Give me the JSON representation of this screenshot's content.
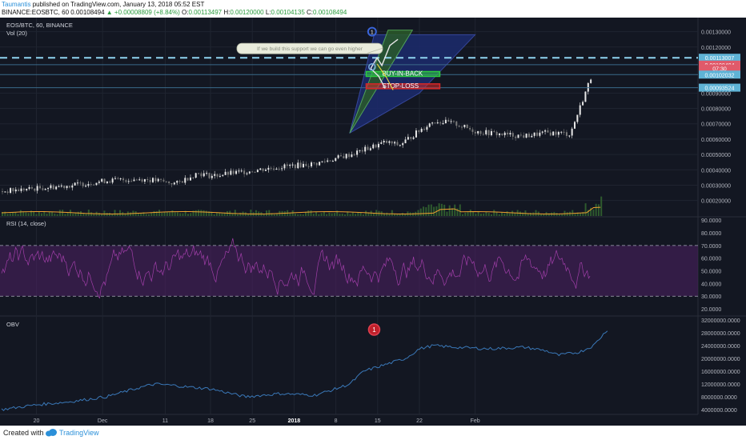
{
  "header": {
    "author": "Taumantis",
    "published": "published on TradingView.com, January 13, 2018 05:52 EST",
    "symbol": "BINANCE:EOSBTC, 60",
    "price": "0.00108494",
    "change": "▲ +0.00008809 (+8.84%)",
    "o_label": "O:",
    "o_value": "0.00113497",
    "h_label": "H:",
    "h_value": "0.00120000",
    "l_label": "L:",
    "l_value": "0.00104135",
    "c_label": "C:",
    "c_value": "0.00108494"
  },
  "footer": {
    "created_with": "Created with",
    "brand": "TradingView",
    "logo_icon": "tradingview-cloud-icon"
  },
  "colors": {
    "background": "#131722",
    "panel_border": "#2a2e39",
    "grid": "#1f2430",
    "axis_text": "#b2b5be",
    "candle_up": "#e8e8e8",
    "candle_down": "#7a7a7a",
    "volume": "#2e5a2e",
    "volume_ma": "#f0a030",
    "rsi_line": "#a03ea8",
    "rsi_band": "#4a1f5f",
    "obv_line": "#3a78b8",
    "support_line": "#8fd4f0",
    "buy_green": "#2ecc40",
    "stop_red": "#d62828",
    "price_badge": "#e05a6a",
    "level_badge": "#5fb3d6"
  },
  "chart_data": [
    {
      "type": "candlestick",
      "pane": "price",
      "title": "EOS/BTC, 60, BINANCE",
      "legend": [
        "Vol (20)"
      ],
      "ylim": [
        0.00012,
        0.00135
      ],
      "y_ticks": [
        "0.00130000",
        "0.00120000",
        "0.00090000",
        "0.00080000",
        "0.00070000",
        "0.00060000",
        "0.00050000",
        "0.00040000",
        "0.00030000",
        "0.00020000"
      ],
      "x_tick_labels": [
        "20",
        "Dec",
        "11",
        "18",
        "25",
        "2018",
        "8",
        "15",
        "22",
        "Feb"
      ],
      "trend": {
        "x": [
          0,
          0.05,
          0.1,
          0.15,
          0.2,
          0.22,
          0.25,
          0.28,
          0.3,
          0.35,
          0.4,
          0.45,
          0.5,
          0.55,
          0.57,
          0.6,
          0.62,
          0.65,
          0.68,
          0.7,
          0.72,
          0.75,
          0.78,
          0.8,
          0.82,
          0.84
        ],
        "close": [
          0.00026,
          0.00028,
          0.0003,
          0.00033,
          0.00034,
          0.00033,
          0.00031,
          0.00038,
          0.00036,
          0.00039,
          0.00042,
          0.00044,
          0.0005,
          0.00058,
          0.00056,
          0.00066,
          0.00072,
          0.0007,
          0.00065,
          0.00064,
          0.00063,
          0.00062,
          0.00064,
          0.00064,
          0.00063,
          0.00064
        ]
      },
      "badges": [
        {
          "label": "0.00113007",
          "value": 0.00113007,
          "kind": "level"
        },
        {
          "label": "0.00108494",
          "value": 0.00108494,
          "kind": "price"
        },
        {
          "label": "07:30",
          "value": 0.00106,
          "kind": "price"
        },
        {
          "label": "0.00102032",
          "value": 0.00102032,
          "kind": "level"
        },
        {
          "label": "0.00093524",
          "value": 0.00093524,
          "kind": "level"
        }
      ],
      "annotations": {
        "callout": "If we build this support we can go even higher",
        "buy_label": "BUY-IN-BACK",
        "stop_label": "STOP-LOSS",
        "marker": "1"
      }
    },
    {
      "type": "line",
      "pane": "rsi",
      "title": "RSI (14, close)",
      "ylim": [
        15,
        92
      ],
      "band": [
        30,
        70
      ],
      "y_ticks": [
        "90.0000",
        "80.0000",
        "70.0000",
        "60.0000",
        "50.0000",
        "40.0000",
        "30.0000",
        "20.0000"
      ]
    },
    {
      "type": "line",
      "pane": "obv",
      "title": "OBV",
      "ylim": [
        2500000,
        33000000
      ],
      "y_ticks": [
        "32000000.0000",
        "28000000.0000",
        "24000000.0000",
        "20000000.0000",
        "16000000.0000",
        "12000000.0000",
        "8000000.0000",
        "4000000.0000"
      ],
      "marker": "1",
      "series": {
        "x": [
          0,
          0.05,
          0.1,
          0.15,
          0.2,
          0.22,
          0.25,
          0.27,
          0.3,
          0.32,
          0.35,
          0.4,
          0.45,
          0.48,
          0.5,
          0.52,
          0.55,
          0.58,
          0.6,
          0.62,
          0.65,
          0.7,
          0.75,
          0.78,
          0.8,
          0.83,
          0.85,
          0.87
        ],
        "values": [
          4000000,
          5500000,
          6500000,
          8000000,
          11000000,
          12000000,
          11500000,
          11000000,
          10500000,
          9500000,
          8000000,
          9000000,
          8500000,
          10500000,
          12000000,
          16000000,
          18000000,
          20000000,
          23000000,
          24000000,
          23500000,
          23000000,
          23500000,
          22500000,
          21000000,
          22000000,
          24000000,
          29000000
        ]
      }
    }
  ]
}
